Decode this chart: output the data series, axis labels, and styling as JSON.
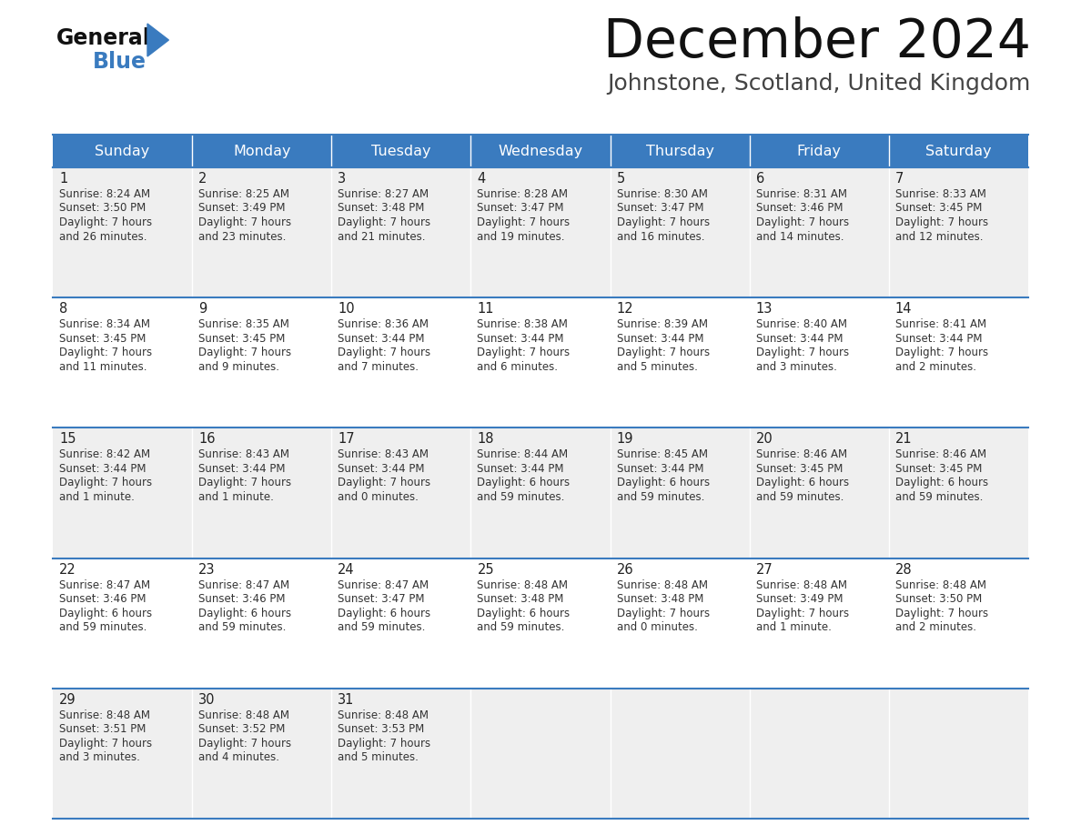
{
  "title": "December 2024",
  "subtitle": "Johnstone, Scotland, United Kingdom",
  "days_of_week": [
    "Sunday",
    "Monday",
    "Tuesday",
    "Wednesday",
    "Thursday",
    "Friday",
    "Saturday"
  ],
  "header_bg": "#3a7bbf",
  "header_text": "#ffffff",
  "row_bg_odd": "#efefef",
  "row_bg_even": "#ffffff",
  "cell_border": "#3a7bbf",
  "day_num_color": "#222222",
  "text_color": "#333333",
  "title_color": "#111111",
  "subtitle_color": "#444444",
  "logo_general_color": "#111111",
  "logo_blue_color": "#3a7bbf",
  "weeks": [
    [
      {
        "day": 1,
        "sunrise": "8:24 AM",
        "sunset": "3:50 PM",
        "daylight": "7 hours",
        "daylight2": "and 26 minutes."
      },
      {
        "day": 2,
        "sunrise": "8:25 AM",
        "sunset": "3:49 PM",
        "daylight": "7 hours",
        "daylight2": "and 23 minutes."
      },
      {
        "day": 3,
        "sunrise": "8:27 AM",
        "sunset": "3:48 PM",
        "daylight": "7 hours",
        "daylight2": "and 21 minutes."
      },
      {
        "day": 4,
        "sunrise": "8:28 AM",
        "sunset": "3:47 PM",
        "daylight": "7 hours",
        "daylight2": "and 19 minutes."
      },
      {
        "day": 5,
        "sunrise": "8:30 AM",
        "sunset": "3:47 PM",
        "daylight": "7 hours",
        "daylight2": "and 16 minutes."
      },
      {
        "day": 6,
        "sunrise": "8:31 AM",
        "sunset": "3:46 PM",
        "daylight": "7 hours",
        "daylight2": "and 14 minutes."
      },
      {
        "day": 7,
        "sunrise": "8:33 AM",
        "sunset": "3:45 PM",
        "daylight": "7 hours",
        "daylight2": "and 12 minutes."
      }
    ],
    [
      {
        "day": 8,
        "sunrise": "8:34 AM",
        "sunset": "3:45 PM",
        "daylight": "7 hours",
        "daylight2": "and 11 minutes."
      },
      {
        "day": 9,
        "sunrise": "8:35 AM",
        "sunset": "3:45 PM",
        "daylight": "7 hours",
        "daylight2": "and 9 minutes."
      },
      {
        "day": 10,
        "sunrise": "8:36 AM",
        "sunset": "3:44 PM",
        "daylight": "7 hours",
        "daylight2": "and 7 minutes."
      },
      {
        "day": 11,
        "sunrise": "8:38 AM",
        "sunset": "3:44 PM",
        "daylight": "7 hours",
        "daylight2": "and 6 minutes."
      },
      {
        "day": 12,
        "sunrise": "8:39 AM",
        "sunset": "3:44 PM",
        "daylight": "7 hours",
        "daylight2": "and 5 minutes."
      },
      {
        "day": 13,
        "sunrise": "8:40 AM",
        "sunset": "3:44 PM",
        "daylight": "7 hours",
        "daylight2": "and 3 minutes."
      },
      {
        "day": 14,
        "sunrise": "8:41 AM",
        "sunset": "3:44 PM",
        "daylight": "7 hours",
        "daylight2": "and 2 minutes."
      }
    ],
    [
      {
        "day": 15,
        "sunrise": "8:42 AM",
        "sunset": "3:44 PM",
        "daylight": "7 hours",
        "daylight2": "and 1 minute."
      },
      {
        "day": 16,
        "sunrise": "8:43 AM",
        "sunset": "3:44 PM",
        "daylight": "7 hours",
        "daylight2": "and 1 minute."
      },
      {
        "day": 17,
        "sunrise": "8:43 AM",
        "sunset": "3:44 PM",
        "daylight": "7 hours",
        "daylight2": "and 0 minutes."
      },
      {
        "day": 18,
        "sunrise": "8:44 AM",
        "sunset": "3:44 PM",
        "daylight": "6 hours",
        "daylight2": "and 59 minutes."
      },
      {
        "day": 19,
        "sunrise": "8:45 AM",
        "sunset": "3:44 PM",
        "daylight": "6 hours",
        "daylight2": "and 59 minutes."
      },
      {
        "day": 20,
        "sunrise": "8:46 AM",
        "sunset": "3:45 PM",
        "daylight": "6 hours",
        "daylight2": "and 59 minutes."
      },
      {
        "day": 21,
        "sunrise": "8:46 AM",
        "sunset": "3:45 PM",
        "daylight": "6 hours",
        "daylight2": "and 59 minutes."
      }
    ],
    [
      {
        "day": 22,
        "sunrise": "8:47 AM",
        "sunset": "3:46 PM",
        "daylight": "6 hours",
        "daylight2": "and 59 minutes."
      },
      {
        "day": 23,
        "sunrise": "8:47 AM",
        "sunset": "3:46 PM",
        "daylight": "6 hours",
        "daylight2": "and 59 minutes."
      },
      {
        "day": 24,
        "sunrise": "8:47 AM",
        "sunset": "3:47 PM",
        "daylight": "6 hours",
        "daylight2": "and 59 minutes."
      },
      {
        "day": 25,
        "sunrise": "8:48 AM",
        "sunset": "3:48 PM",
        "daylight": "6 hours",
        "daylight2": "and 59 minutes."
      },
      {
        "day": 26,
        "sunrise": "8:48 AM",
        "sunset": "3:48 PM",
        "daylight": "7 hours",
        "daylight2": "and 0 minutes."
      },
      {
        "day": 27,
        "sunrise": "8:48 AM",
        "sunset": "3:49 PM",
        "daylight": "7 hours",
        "daylight2": "and 1 minute."
      },
      {
        "day": 28,
        "sunrise": "8:48 AM",
        "sunset": "3:50 PM",
        "daylight": "7 hours",
        "daylight2": "and 2 minutes."
      }
    ],
    [
      {
        "day": 29,
        "sunrise": "8:48 AM",
        "sunset": "3:51 PM",
        "daylight": "7 hours",
        "daylight2": "and 3 minutes."
      },
      {
        "day": 30,
        "sunrise": "8:48 AM",
        "sunset": "3:52 PM",
        "daylight": "7 hours",
        "daylight2": "and 4 minutes."
      },
      {
        "day": 31,
        "sunrise": "8:48 AM",
        "sunset": "3:53 PM",
        "daylight": "7 hours",
        "daylight2": "and 5 minutes."
      },
      null,
      null,
      null,
      null
    ]
  ]
}
